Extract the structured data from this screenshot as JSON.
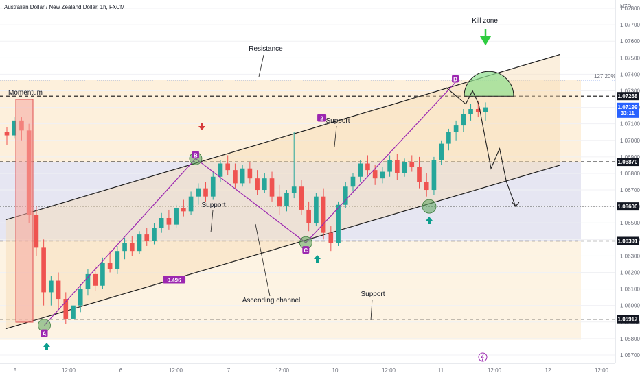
{
  "chart_data": {
    "type": "candlestick",
    "title": "Australian Dollar / New Zealand Dollar, 1h, FXCM",
    "currency": "NZD",
    "ylim": [
      1.0565,
      1.0785
    ],
    "x_ticks": [
      "5",
      "12:00",
      "6",
      "12:00",
      "7",
      "12:00",
      "10",
      "12:00",
      "11",
      "12:00",
      "12",
      "12:00"
    ],
    "y_ticks": [
      1.057,
      1.058,
      1.059,
      1.06,
      1.061,
      1.062,
      1.063,
      1.064,
      1.065,
      1.066,
      1.067,
      1.068,
      1.069,
      1.07,
      1.071,
      1.072,
      1.073,
      1.074,
      1.075,
      1.076,
      1.077,
      1.078
    ],
    "price_levels": [
      {
        "value": 1.07268,
        "label": "1.07268"
      },
      {
        "value": 1.0687,
        "label": "1.06870"
      },
      {
        "value": 1.066,
        "label": "1.06600"
      },
      {
        "value": 1.06391,
        "label": "1.06391"
      },
      {
        "value": 1.05917,
        "label": "1.05917"
      }
    ],
    "last_price": {
      "value": 1.07199,
      "label": "1.07199",
      "countdown": "33:11"
    },
    "fib_extension": {
      "label": "127.20%",
      "value": 1.07365
    },
    "pattern_points": [
      {
        "label": "A",
        "x": 0.072,
        "value": 1.0588
      },
      {
        "label": "B",
        "x": 0.318,
        "value": 1.0689
      },
      {
        "label": "C",
        "x": 0.497,
        "value": 1.0638
      },
      {
        "label": "D",
        "x": 0.74,
        "value": 1.0735
      }
    ],
    "ratios": [
      {
        "label": "0.496",
        "x": 0.283,
        "value": 1.0615
      },
      {
        "label": "2",
        "x": 0.523,
        "value": 1.0713
      }
    ],
    "annotations": {
      "kill_zone": "Kill zone",
      "resistance": "Resistance",
      "momentum": "Momentum",
      "support_top": "Support",
      "support_mid": "Support",
      "support_bottom": "Support",
      "ascending_channel": "Ascending channel"
    },
    "channel": {
      "upper": [
        {
          "x": 0.01,
          "value": 1.0652
        },
        {
          "x": 0.91,
          "value": 1.0752
        }
      ],
      "lower": [
        {
          "x": 0.01,
          "value": 1.0586
        },
        {
          "x": 0.91,
          "value": 1.0685
        }
      ]
    },
    "projection": [
      {
        "x": 0.725,
        "value": 1.0732
      },
      {
        "x": 0.757,
        "value": 1.0722
      },
      {
        "x": 0.768,
        "value": 1.073
      },
      {
        "x": 0.778,
        "value": 1.0722
      },
      {
        "x": 0.798,
        "value": 1.0683
      },
      {
        "x": 0.812,
        "value": 1.0695
      },
      {
        "x": 0.823,
        "value": 1.0675
      },
      {
        "x": 0.838,
        "value": 1.066
      }
    ],
    "candles": [
      {
        "o": 1.0705,
        "h": 1.0708,
        "l": 1.0697,
        "c": 1.0703
      },
      {
        "o": 1.0703,
        "h": 1.0714,
        "l": 1.0701,
        "c": 1.0712
      },
      {
        "o": 1.0712,
        "h": 1.0714,
        "l": 1.07,
        "c": 1.0706
      },
      {
        "o": 1.0706,
        "h": 1.071,
        "l": 1.065,
        "c": 1.0655
      },
      {
        "o": 1.0655,
        "h": 1.066,
        "l": 1.063,
        "c": 1.0635
      },
      {
        "o": 1.0635,
        "h": 1.064,
        "l": 1.06,
        "c": 1.0608
      },
      {
        "o": 1.0608,
        "h": 1.0618,
        "l": 1.06,
        "c": 1.0615
      },
      {
        "o": 1.0615,
        "h": 1.062,
        "l": 1.0598,
        "c": 1.0604
      },
      {
        "o": 1.0604,
        "h": 1.0608,
        "l": 1.0589,
        "c": 1.0592
      },
      {
        "o": 1.0592,
        "h": 1.0604,
        "l": 1.0588,
        "c": 1.06
      },
      {
        "o": 1.06,
        "h": 1.0613,
        "l": 1.0596,
        "c": 1.061
      },
      {
        "o": 1.061,
        "h": 1.0622,
        "l": 1.0606,
        "c": 1.0619
      },
      {
        "o": 1.0619,
        "h": 1.0624,
        "l": 1.0609,
        "c": 1.0612
      },
      {
        "o": 1.0612,
        "h": 1.0629,
        "l": 1.061,
        "c": 1.0626
      },
      {
        "o": 1.0626,
        "h": 1.0633,
        "l": 1.062,
        "c": 1.0622
      },
      {
        "o": 1.0622,
        "h": 1.0636,
        "l": 1.0619,
        "c": 1.0633
      },
      {
        "o": 1.0633,
        "h": 1.0641,
        "l": 1.0628,
        "c": 1.0638
      },
      {
        "o": 1.0638,
        "h": 1.0642,
        "l": 1.063,
        "c": 1.0633
      },
      {
        "o": 1.0633,
        "h": 1.0645,
        "l": 1.0631,
        "c": 1.0643
      },
      {
        "o": 1.0643,
        "h": 1.0647,
        "l": 1.0636,
        "c": 1.0639
      },
      {
        "o": 1.0639,
        "h": 1.065,
        "l": 1.0637,
        "c": 1.0647
      },
      {
        "o": 1.0647,
        "h": 1.0656,
        "l": 1.0644,
        "c": 1.0653
      },
      {
        "o": 1.0653,
        "h": 1.0658,
        "l": 1.0646,
        "c": 1.0649
      },
      {
        "o": 1.0649,
        "h": 1.0661,
        "l": 1.0647,
        "c": 1.0659
      },
      {
        "o": 1.0659,
        "h": 1.0664,
        "l": 1.0654,
        "c": 1.0657
      },
      {
        "o": 1.0657,
        "h": 1.0669,
        "l": 1.0655,
        "c": 1.0666
      },
      {
        "o": 1.0666,
        "h": 1.0674,
        "l": 1.0661,
        "c": 1.0671
      },
      {
        "o": 1.0671,
        "h": 1.0675,
        "l": 1.0663,
        "c": 1.0666
      },
      {
        "o": 1.0666,
        "h": 1.0681,
        "l": 1.0664,
        "c": 1.0678
      },
      {
        "o": 1.0678,
        "h": 1.0688,
        "l": 1.0675,
        "c": 1.0686
      },
      {
        "o": 1.0686,
        "h": 1.0691,
        "l": 1.0679,
        "c": 1.0682
      },
      {
        "o": 1.0682,
        "h": 1.0686,
        "l": 1.0671,
        "c": 1.0674
      },
      {
        "o": 1.0674,
        "h": 1.0685,
        "l": 1.0672,
        "c": 1.0683
      },
      {
        "o": 1.0683,
        "h": 1.0687,
        "l": 1.0674,
        "c": 1.0677
      },
      {
        "o": 1.0677,
        "h": 1.0682,
        "l": 1.0667,
        "c": 1.067
      },
      {
        "o": 1.067,
        "h": 1.068,
        "l": 1.0668,
        "c": 1.0677
      },
      {
        "o": 1.0677,
        "h": 1.0681,
        "l": 1.0663,
        "c": 1.0666
      },
      {
        "o": 1.0666,
        "h": 1.0673,
        "l": 1.0655,
        "c": 1.066
      },
      {
        "o": 1.066,
        "h": 1.067,
        "l": 1.0657,
        "c": 1.0668
      },
      {
        "o": 1.0668,
        "h": 1.0705,
        "l": 1.0665,
        "c": 1.0672
      },
      {
        "o": 1.0672,
        "h": 1.0676,
        "l": 1.0655,
        "c": 1.0658
      },
      {
        "o": 1.0658,
        "h": 1.0663,
        "l": 1.0645,
        "c": 1.065
      },
      {
        "o": 1.065,
        "h": 1.0668,
        "l": 1.0648,
        "c": 1.0666
      },
      {
        "o": 1.0666,
        "h": 1.0671,
        "l": 1.064,
        "c": 1.0644
      },
      {
        "o": 1.0644,
        "h": 1.0648,
        "l": 1.0633,
        "c": 1.0638
      },
      {
        "o": 1.0638,
        "h": 1.0663,
        "l": 1.0636,
        "c": 1.0661
      },
      {
        "o": 1.0661,
        "h": 1.0675,
        "l": 1.0659,
        "c": 1.0672
      },
      {
        "o": 1.0672,
        "h": 1.068,
        "l": 1.0669,
        "c": 1.0678
      },
      {
        "o": 1.0678,
        "h": 1.0688,
        "l": 1.0675,
        "c": 1.0686
      },
      {
        "o": 1.0686,
        "h": 1.0691,
        "l": 1.0679,
        "c": 1.0682
      },
      {
        "o": 1.0682,
        "h": 1.0685,
        "l": 1.0673,
        "c": 1.0677
      },
      {
        "o": 1.0677,
        "h": 1.0684,
        "l": 1.0674,
        "c": 1.0681
      },
      {
        "o": 1.0681,
        "h": 1.0691,
        "l": 1.0678,
        "c": 1.0688
      },
      {
        "o": 1.0688,
        "h": 1.0692,
        "l": 1.0676,
        "c": 1.068
      },
      {
        "o": 1.068,
        "h": 1.0689,
        "l": 1.0678,
        "c": 1.0687
      },
      {
        "o": 1.0687,
        "h": 1.0691,
        "l": 1.0681,
        "c": 1.0684
      },
      {
        "o": 1.0684,
        "h": 1.069,
        "l": 1.0671,
        "c": 1.0675
      },
      {
        "o": 1.0675,
        "h": 1.068,
        "l": 1.0666,
        "c": 1.067
      },
      {
        "o": 1.067,
        "h": 1.069,
        "l": 1.0667,
        "c": 1.0688
      },
      {
        "o": 1.0688,
        "h": 1.07,
        "l": 1.0685,
        "c": 1.0698
      },
      {
        "o": 1.0698,
        "h": 1.0707,
        "l": 1.0694,
        "c": 1.0705
      },
      {
        "o": 1.0705,
        "h": 1.0712,
        "l": 1.07,
        "c": 1.0709
      },
      {
        "o": 1.0709,
        "h": 1.0719,
        "l": 1.0705,
        "c": 1.0716
      },
      {
        "o": 1.0716,
        "h": 1.0722,
        "l": 1.0712,
        "c": 1.0719
      },
      {
        "o": 1.0719,
        "h": 1.0724,
        "l": 1.0714,
        "c": 1.0717
      },
      {
        "o": 1.0717,
        "h": 1.0723,
        "l": 1.0712,
        "c": 1.072
      }
    ]
  }
}
